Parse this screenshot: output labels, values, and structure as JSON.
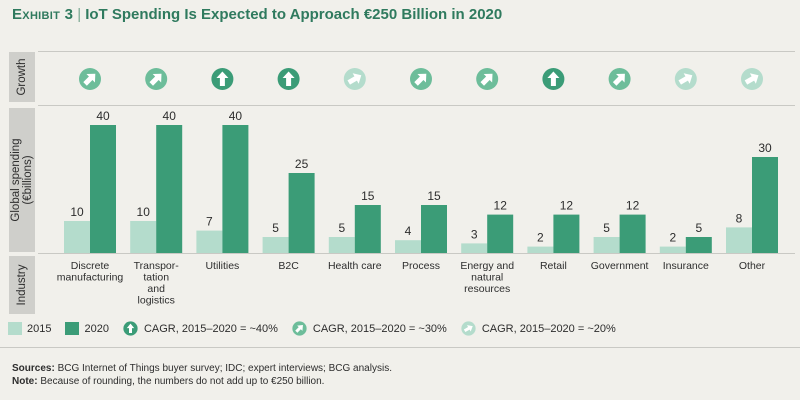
{
  "title": {
    "exhibit": "Exhibit 3",
    "text": "IoT Spending Is Expected to Approach €250 Billion in 2020"
  },
  "row_labels": {
    "growth": "Growth",
    "spending": "Global spending",
    "spending_unit": "(€billions)",
    "industry": "Industry"
  },
  "colors": {
    "s2015": "#b4dccc",
    "s2020": "#3b9c77",
    "title": "#2f7a5e",
    "growth_40": "#3b9c77",
    "growth_30": "#6dbd9a",
    "growth_20": "#b4dccc"
  },
  "chart_data": {
    "type": "bar",
    "title": "IoT Spending Is Expected to Approach €250 Billion in 2020",
    "ylabel": "Global spending (€billions)",
    "xlabel": "Industry",
    "categories": [
      "Discrete manufacturing",
      "Transpor-tation and logistics",
      "Utilities",
      "B2C",
      "Health care",
      "Process",
      "Energy and natural resources",
      "Retail",
      "Government",
      "Insurance",
      "Other"
    ],
    "category_lines": [
      [
        "Discrete",
        "manufacturing"
      ],
      [
        "Transpor-",
        "tation",
        "and",
        "logistics"
      ],
      [
        "Utilities"
      ],
      [
        "B2C"
      ],
      [
        "Health care"
      ],
      [
        "Process"
      ],
      [
        "Energy and",
        "natural",
        "resources"
      ],
      [
        "Retail"
      ],
      [
        "Government"
      ],
      [
        "Insurance"
      ],
      [
        "Other"
      ]
    ],
    "series": [
      {
        "name": "2015",
        "values": [
          10,
          10,
          7,
          5,
          5,
          4,
          3,
          2,
          5,
          2,
          8
        ]
      },
      {
        "name": "2020",
        "values": [
          40,
          40,
          40,
          25,
          15,
          15,
          12,
          12,
          12,
          5,
          30
        ]
      }
    ],
    "growth": [
      "30",
      "30",
      "40",
      "40",
      "20",
      "30",
      "30",
      "40",
      "30",
      "20",
      "20"
    ],
    "ylim": [
      0,
      42
    ],
    "grid": false,
    "legend": "bottom"
  },
  "legend": {
    "s2015": "2015",
    "s2020": "2020",
    "g40": "CAGR, 2015–2020 = ~40%",
    "g30": "CAGR, 2015–2020 = ~30%",
    "g20": "CAGR, 2015–2020 = ~20%"
  },
  "notes": {
    "sources_label": "Sources:",
    "sources": "BCG Internet of Things buyer survey; IDC; expert interviews; BCG analysis.",
    "note_label": "Note:",
    "note": "Because of rounding, the numbers do not add up to €250 billion."
  }
}
